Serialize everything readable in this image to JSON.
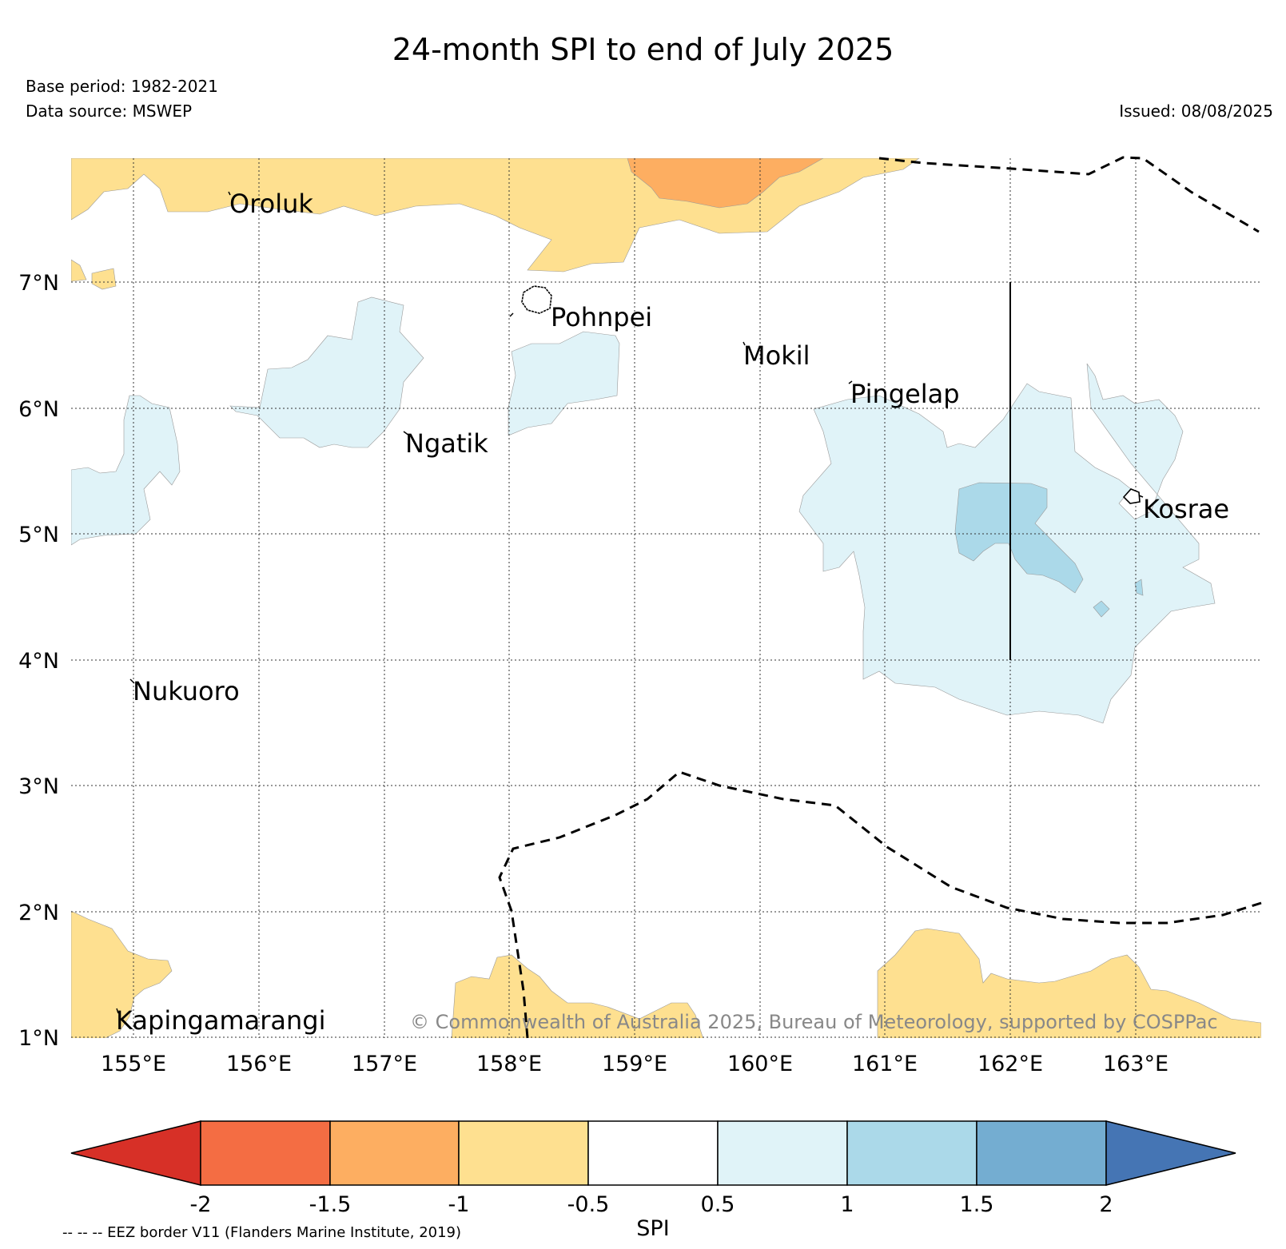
{
  "title": "24-month SPI to end of July 2025",
  "base_period": "Base period: 1982-2021",
  "data_source": "Data source: MSWEP",
  "issued": "Issued: 08/08/2025",
  "copyright": "© Commonwealth of Australia 2025, Bureau of Meteorology, supported by COSPPac",
  "eez_note": "-- -- -- EEZ border V11 (Flanders Marine Institute, 2019)",
  "map": {
    "lon_range": [
      154.5,
      164.0
    ],
    "lat_range": [
      1.0,
      8.0
    ],
    "lat_ticks": [
      "7°N",
      "6°N",
      "5°N",
      "4°N",
      "3°N",
      "2°N",
      "1°N"
    ],
    "lon_ticks": [
      "155°E",
      "156°E",
      "157°E",
      "158°E",
      "159°E",
      "160°E",
      "161°E",
      "162°E",
      "163°E"
    ],
    "places": [
      {
        "name": "Oroluk"
      },
      {
        "name": "Pohnpei"
      },
      {
        "name": "Mokil"
      },
      {
        "name": "Pingelap"
      },
      {
        "name": "Ngatik"
      },
      {
        "name": "Kosrae"
      },
      {
        "name": "Nukuoro"
      },
      {
        "name": "Kapingamarangi"
      }
    ]
  },
  "colorbar": {
    "label": "SPI",
    "ticks": [
      "-2",
      "-1.5",
      "-1",
      "-0.5",
      "0.5",
      "1",
      "1.5",
      "2"
    ],
    "colors": [
      "#d73027",
      "#f46d43",
      "#fdae61",
      "#fee090",
      "#ffffff",
      "#e0f3f8",
      "#abd9e9",
      "#74add1",
      "#4575b4"
    ]
  }
}
